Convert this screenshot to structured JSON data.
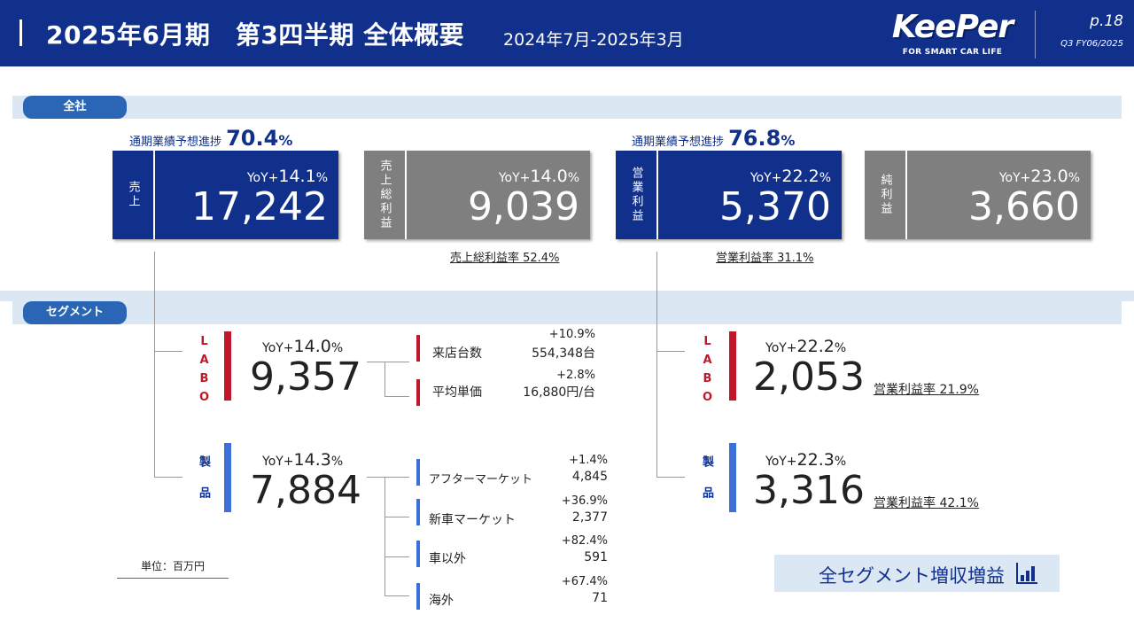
{
  "header": {
    "title": "2025年6月期　第3四半期 全体概要",
    "period": "2024年7月-2025年3月",
    "logo_text": "KeePer",
    "logo_tagline": "FOR SMART CAR LIFE",
    "page": "p.18",
    "page_code": "Q3 FY06/2025"
  },
  "company": {
    "section_label": "全社",
    "sales_progress_label": "通期業績予想進捗",
    "sales_progress_value": "70.4",
    "op_progress_label": "通期業績予想進捗",
    "op_progress_value": "76.8",
    "percent": "%",
    "kpis": [
      {
        "label": "売上",
        "yoy_prefix": "YoY+",
        "yoy": "14.1",
        "value": "17,242"
      },
      {
        "label": "売上総利益",
        "yoy_prefix": "YoY+",
        "yoy": "14.0",
        "value": "9,039"
      },
      {
        "label": "営業利益",
        "yoy_prefix": "YoY+",
        "yoy": "22.2",
        "value": "5,370"
      },
      {
        "label": "純利益",
        "yoy_prefix": "YoY+",
        "yoy": "23.0",
        "value": "3,660"
      }
    ],
    "gross_margin": "売上総利益率 52.4%",
    "op_margin": "営業利益率 31.1%"
  },
  "segment": {
    "section_label": "セグメント",
    "sales": [
      {
        "label": "LABO",
        "yoy_prefix": "YoY+",
        "yoy": "14.0",
        "value": "9,357",
        "breakdown": [
          {
            "label": "来店台数",
            "pct": "+10.9%",
            "value": "554,348台"
          },
          {
            "label": "平均単価",
            "pct": "+2.8%",
            "value": "16,880円/台"
          }
        ]
      },
      {
        "label": "製品",
        "yoy_prefix": "YoY+",
        "yoy": "14.3",
        "value": "7,884",
        "breakdown": [
          {
            "label": "アフターマーケット",
            "pct": "+1.4%",
            "value": "4,845"
          },
          {
            "label": "新車マーケット",
            "pct": "+36.9%",
            "value": "2,377"
          },
          {
            "label": "車以外",
            "pct": "+82.4%",
            "value": "591"
          },
          {
            "label": "海外",
            "pct": "+67.4%",
            "value": "71"
          }
        ]
      }
    ],
    "profit": [
      {
        "label": "LABO",
        "yoy_prefix": "YoY+",
        "yoy": "22.2",
        "value": "2,053",
        "margin": "営業利益率 21.9%"
      },
      {
        "label": "製品",
        "yoy_prefix": "YoY+",
        "yoy": "22.3",
        "value": "3,316",
        "margin": "営業利益率 42.1%"
      }
    ],
    "unit": "単位：百万円",
    "callout": "全セグメント増収増益"
  },
  "colors": {
    "navy": "#10308c",
    "gray": "#7f7f7f",
    "red": "#c0182a",
    "blue": "#3d6fd9",
    "panel": "#dce7f4"
  }
}
